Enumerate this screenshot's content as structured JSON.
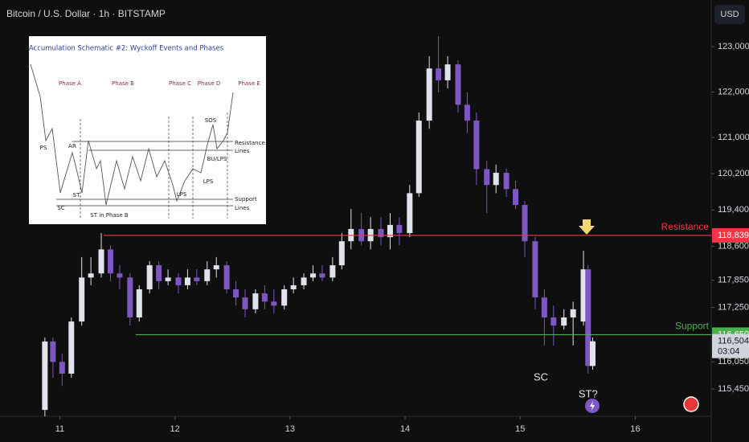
{
  "header": {
    "title": "Bitcoin / U.S. Dollar · 1h · BITSTAMP",
    "currency": "USD"
  },
  "inset": {
    "title": "Accumulation Schematic #2: Wyckoff Events and Phases",
    "phases": [
      "Phase A",
      "Phase B",
      "Phase C",
      "Phase D",
      "Phase E"
    ],
    "events": [
      "PS",
      "SC",
      "AR",
      "ST",
      "ST in Phase B",
      "SOS",
      "BU/LPS",
      "LPS",
      "LPS"
    ],
    "line_labels": [
      "Resistance",
      "Lines",
      "Support",
      "Lines"
    ]
  },
  "chart_data": {
    "type": "candlestick",
    "x": [
      10.87,
      10.94,
      11.02,
      11.1,
      11.19,
      11.27,
      11.36,
      11.44,
      11.52,
      11.61,
      11.69,
      11.78,
      11.86,
      11.94,
      12.03,
      12.11,
      12.19,
      12.28,
      12.36,
      12.45,
      12.53,
      12.61,
      12.7,
      12.78,
      12.86,
      12.95,
      13.03,
      13.12,
      13.2,
      13.28,
      13.37,
      13.45,
      13.53,
      13.62,
      13.7,
      13.79,
      13.87,
      13.95,
      14.04,
      14.12,
      14.21,
      14.29,
      14.37,
      14.46,
      14.54,
      14.62,
      14.71,
      14.79,
      14.88,
      14.96,
      15.04,
      15.13,
      15.21,
      15.29,
      15.38,
      15.46,
      15.55,
      15.59,
      15.63
    ],
    "open": [
      114990,
      116500,
      116050,
      115790,
      116940,
      117910,
      118000,
      118530,
      118000,
      117910,
      117030,
      117650,
      118180,
      117830,
      117910,
      117740,
      117910,
      117830,
      118090,
      118180,
      117650,
      117470,
      117210,
      117560,
      117380,
      117290,
      117650,
      117740,
      117910,
      118000,
      117910,
      118180,
      118710,
      118980,
      118710,
      118980,
      118800,
      119070,
      118890,
      119770,
      121370,
      122520,
      122260,
      122610,
      121720,
      121370,
      120300,
      119950,
      120220,
      119860,
      119510,
      118710,
      117470,
      117030,
      116850,
      117030,
      116940,
      118090,
      115960
    ],
    "close": [
      116500,
      116050,
      115790,
      116940,
      117910,
      118000,
      118530,
      118000,
      117910,
      117030,
      117650,
      118180,
      117830,
      117910,
      117740,
      117910,
      117830,
      118090,
      118180,
      117650,
      117470,
      117210,
      117560,
      117380,
      117290,
      117650,
      117740,
      117910,
      118000,
      117910,
      118180,
      118710,
      118980,
      118710,
      118980,
      118800,
      119070,
      118890,
      119770,
      121370,
      122520,
      122260,
      122610,
      121720,
      121370,
      120300,
      119950,
      120220,
      119860,
      119510,
      118710,
      117470,
      117030,
      116850,
      117030,
      117210,
      118090,
      115960,
      116504
    ],
    "high": [
      116590,
      116590,
      116230,
      117030,
      118360,
      118360,
      118890,
      118620,
      118180,
      118000,
      117740,
      118270,
      118270,
      118090,
      118000,
      118090,
      118090,
      118270,
      118360,
      118270,
      117830,
      117650,
      117650,
      117740,
      117650,
      117740,
      117910,
      118000,
      118180,
      118180,
      118360,
      118890,
      119420,
      119330,
      119240,
      119240,
      119330,
      119240,
      119950,
      121550,
      122790,
      123230,
      122790,
      122700,
      121990,
      121550,
      120480,
      120400,
      120310,
      120040,
      119600,
      118800,
      117650,
      117290,
      117210,
      117380,
      118500,
      118180,
      116590
    ],
    "low": [
      114850,
      115700,
      115520,
      115700,
      116850,
      117740,
      117910,
      117830,
      117650,
      116850,
      116940,
      117560,
      117650,
      117740,
      117560,
      117650,
      117740,
      117740,
      117910,
      117560,
      117290,
      117030,
      117120,
      117210,
      117120,
      117210,
      117560,
      117650,
      117830,
      117830,
      117830,
      118090,
      118530,
      118620,
      118530,
      118620,
      118530,
      118620,
      118800,
      119690,
      121190,
      121990,
      122080,
      121550,
      121100,
      119950,
      119330,
      119770,
      119690,
      119420,
      118360,
      117210,
      116410,
      116410,
      116760,
      116410,
      116850,
      115790,
      115880
    ],
    "up_color": "#e0e3eb",
    "down_color": "#7e57c2",
    "xlim": [
      10.48,
      16.66
    ],
    "xticks": [
      11,
      12,
      13,
      14,
      15,
      16
    ],
    "ylim": [
      114850,
      124030
    ],
    "yticks": [
      {
        "value": 123000,
        "label": "123,000"
      },
      {
        "value": 122000,
        "label": "122,000"
      },
      {
        "value": 121000,
        "label": "121,000"
      },
      {
        "value": 120200,
        "label": "120,200"
      },
      {
        "value": 119400,
        "label": "119,400"
      },
      {
        "value": 118600,
        "label": "118,600"
      },
      {
        "value": 117850,
        "label": "117,850"
      },
      {
        "value": 117250,
        "label": "117,250"
      },
      {
        "value": 116050,
        "label": "116,050"
      },
      {
        "value": 115450,
        "label": "115,450"
      }
    ],
    "levels": [
      {
        "name": "Resistance",
        "value": 118839,
        "value_label": "118,839",
        "start": 11.38,
        "color": "#f23645"
      },
      {
        "name": "Support",
        "value": 116650,
        "value_label": "116,650",
        "start": 11.66,
        "color": "#4caf50"
      }
    ],
    "last_price": {
      "value": 116504,
      "label": "116,504",
      "countdown": "03:04"
    },
    "annotations": [
      {
        "text": "SC",
        "x": 15.18,
        "y": 115700
      },
      {
        "text": "ST?",
        "x": 15.59,
        "y": 115330
      }
    ]
  }
}
